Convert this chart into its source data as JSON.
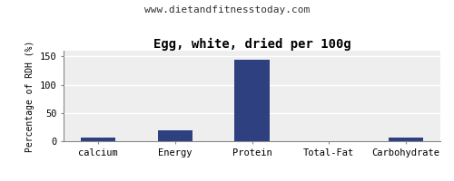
{
  "title": "Egg, white, dried per 100g",
  "subtitle": "www.dietandfitnesstoday.com",
  "categories": [
    "calcium",
    "Energy",
    "Protein",
    "Total-Fat",
    "Carbohydrate"
  ],
  "values": [
    7,
    20,
    144,
    0.5,
    7
  ],
  "bar_color": "#2e4080",
  "ylabel": "Percentage of RDH (%)",
  "ylim": [
    0,
    160
  ],
  "yticks": [
    0,
    50,
    100,
    150
  ],
  "background_color": "#ffffff",
  "plot_bg_color": "#eeeeee",
  "grid_color": "#ffffff",
  "title_fontsize": 10,
  "subtitle_fontsize": 8,
  "label_fontsize": 7,
  "tick_fontsize": 7.5
}
